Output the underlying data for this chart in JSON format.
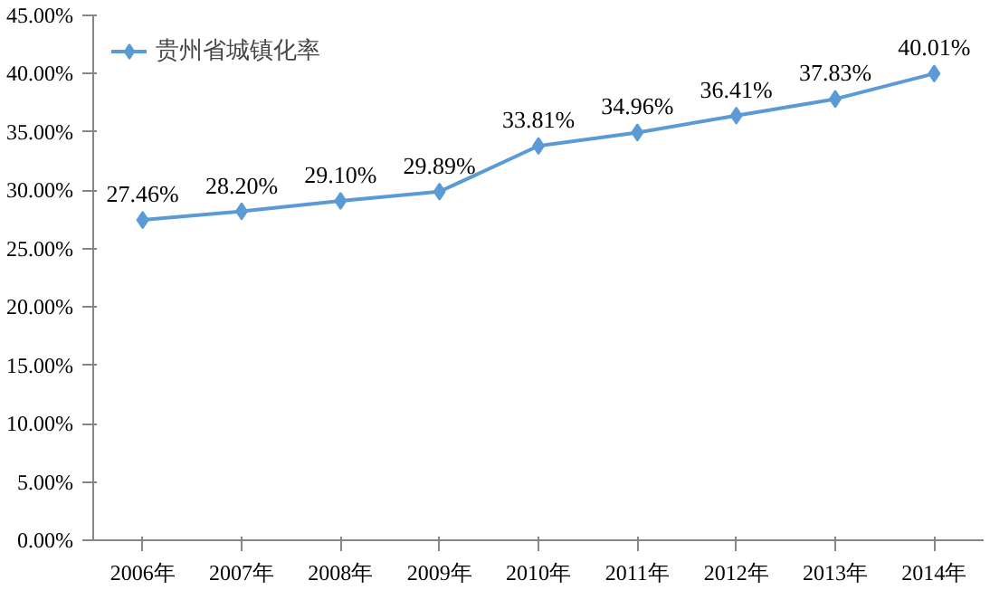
{
  "chart_data": {
    "type": "line",
    "categories": [
      "2006年",
      "2007年",
      "2008年",
      "2009年",
      "2010年",
      "2011年",
      "2012年",
      "2013年",
      "2014年"
    ],
    "series": [
      {
        "name": "贵州省城镇化率",
        "color": "#5b9bd5",
        "values": [
          27.46,
          28.2,
          29.1,
          29.89,
          33.81,
          34.96,
          36.41,
          37.83,
          40.01
        ],
        "value_labels": [
          "27.46%",
          "28.20%",
          "29.10%",
          "29.89%",
          "33.81%",
          "34.96%",
          "36.41%",
          "37.83%",
          "40.01%"
        ]
      }
    ],
    "ylim": [
      0,
      45
    ],
    "yticks": [
      {
        "value": 0,
        "label": "0.00%"
      },
      {
        "value": 5,
        "label": "5.00%"
      },
      {
        "value": 10,
        "label": "10.00%"
      },
      {
        "value": 15,
        "label": "15.00%"
      },
      {
        "value": 20,
        "label": "20.00%"
      },
      {
        "value": 25,
        "label": "25.00%"
      },
      {
        "value": 30,
        "label": "30.00%"
      },
      {
        "value": 35,
        "label": "35.00%"
      },
      {
        "value": 40,
        "label": "40.00%"
      },
      {
        "value": 45,
        "label": "45.00%"
      }
    ],
    "grid": false,
    "legend": "top left",
    "marker": "diamond",
    "line_style": "solid"
  }
}
